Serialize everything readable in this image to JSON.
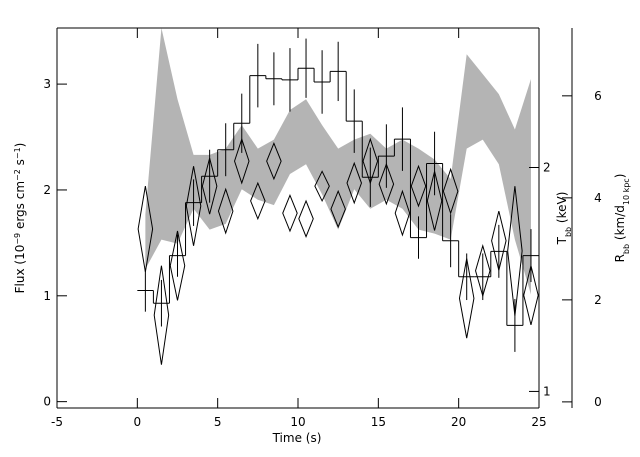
{
  "chart_data": {
    "type": "multi-axis",
    "xlabel": "Time (s)",
    "ylabel": [
      "Flux (10",
      "−9",
      " ergs cm",
      "−2",
      " s",
      "−1",
      ")"
    ],
    "y2label": [
      "T",
      "bb",
      " (keV)"
    ],
    "y3label": [
      "R",
      "bb",
      " (km/d",
      "10 kpc",
      ")"
    ],
    "xlim": [
      -5,
      25
    ],
    "xticks": [
      -5,
      0,
      5,
      10,
      15,
      20,
      25
    ],
    "ylim": [
      -0.06,
      3.53
    ],
    "yticks": [
      0,
      1,
      2,
      3
    ],
    "y2lim": [
      0.95,
      3.08
    ],
    "y2ticks": [
      1,
      2
    ],
    "y2log": true,
    "y3lim": [
      -0.12,
      7.33
    ],
    "y3ticks": [
      0,
      2,
      4,
      6
    ],
    "x": [
      0.5,
      1.5,
      2.5,
      3.5,
      4.5,
      5.5,
      6.5,
      7.5,
      8.5,
      9.5,
      10.5,
      11.5,
      12.5,
      13.5,
      14.5,
      15.5,
      16.5,
      17.5,
      18.5,
      19.5,
      20.5,
      21.5,
      22.5,
      23.5,
      24.5
    ],
    "series": [
      {
        "type": "step",
        "axis": "y",
        "color": "#000000",
        "values": [
          1.05,
          0.93,
          1.38,
          1.88,
          2.13,
          2.38,
          2.63,
          3.08,
          3.05,
          3.04,
          3.15,
          3.02,
          3.12,
          2.65,
          2.12,
          2.32,
          2.48,
          1.55,
          2.25,
          1.52,
          1.18,
          1.18,
          1.42,
          0.72,
          1.38
        ],
        "errors": [
          0.2,
          0.22,
          0.2,
          0.22,
          0.25,
          0.25,
          0.28,
          0.3,
          0.25,
          0.3,
          0.28,
          0.3,
          0.28,
          0.3,
          0.28,
          0.3,
          0.3,
          0.2,
          0.3,
          0.25,
          0.22,
          0.22,
          0.25,
          0.25,
          0.25
        ]
      },
      {
        "type": "band",
        "axis": "y2",
        "color": "#b4b4b4",
        "upper": [
          1.73,
          3.08,
          2.47,
          2.08,
          2.08,
          2.12,
          2.28,
          2.12,
          2.18,
          2.39,
          2.47,
          2.28,
          2.12,
          2.18,
          2.22,
          2.12,
          2.18,
          2.12,
          2.05,
          1.93,
          2.84,
          2.67,
          2.51,
          2.25,
          2.63
        ],
        "lower": [
          1.46,
          1.6,
          1.58,
          1.76,
          1.65,
          1.68,
          1.87,
          1.81,
          1.78,
          1.96,
          2.02,
          1.84,
          1.65,
          1.87,
          1.76,
          1.81,
          1.76,
          1.65,
          1.63,
          1.6,
          2.12,
          2.18,
          2.02,
          1.6,
          1.35
        ]
      },
      {
        "type": "diamond",
        "axis": "y3",
        "color": "#000000",
        "values": [
          3.39,
          1.7,
          2.67,
          3.84,
          4.23,
          3.74,
          4.72,
          3.94,
          4.72,
          3.7,
          3.59,
          4.23,
          3.78,
          4.29,
          4.72,
          4.27,
          3.7,
          4.23,
          3.94,
          4.13,
          2.03,
          2.57,
          3.16,
          2.96,
          2.09
        ],
        "errors": [
          0.84,
          0.97,
          0.68,
          0.78,
          0.55,
          0.43,
          0.43,
          0.35,
          0.35,
          0.35,
          0.35,
          0.29,
          0.35,
          0.39,
          0.43,
          0.39,
          0.43,
          0.39,
          0.58,
          0.43,
          0.78,
          0.49,
          0.58,
          1.27,
          0.58
        ]
      }
    ]
  }
}
